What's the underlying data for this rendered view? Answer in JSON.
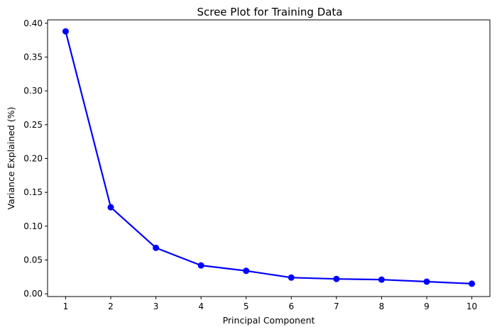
{
  "chart_data": {
    "type": "line",
    "title": "Scree Plot for Training Data",
    "xlabel": "Principal Component",
    "ylabel": "Variance Explained (%)",
    "x": [
      1,
      2,
      3,
      4,
      5,
      6,
      7,
      8,
      9,
      10
    ],
    "series": [
      {
        "values": [
          0.388,
          0.128,
          0.068,
          0.042,
          0.034,
          0.024,
          0.022,
          0.021,
          0.018,
          0.015
        ],
        "color": "#0000ff",
        "marker": "circle"
      }
    ],
    "x_ticks": [
      "1",
      "2",
      "3",
      "4",
      "5",
      "6",
      "7",
      "8",
      "9",
      "10"
    ],
    "y_ticks": [
      "0.00",
      "0.05",
      "0.10",
      "0.15",
      "0.20",
      "0.25",
      "0.30",
      "0.35",
      "0.40"
    ],
    "xlim": [
      0.6,
      10.4
    ],
    "ylim": [
      -0.004,
      0.405
    ],
    "grid": false,
    "legend": "none"
  }
}
